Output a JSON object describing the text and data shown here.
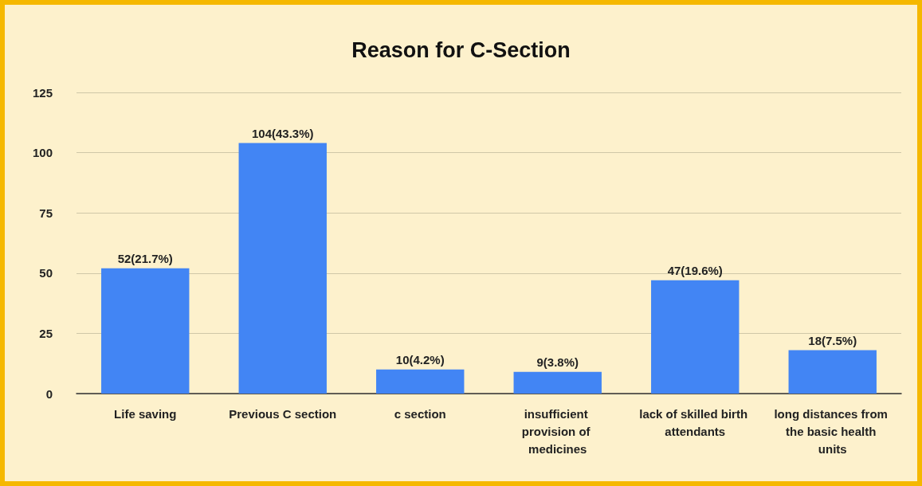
{
  "chart_data": {
    "type": "bar",
    "title": "Reason for C-Section",
    "categories": [
      "Life saving",
      "Previous C section",
      "c section",
      "insufficient provision of medicines",
      "lack of skilled birth attendants",
      "long distances from the basic health units"
    ],
    "values": [
      52,
      104,
      10,
      9,
      47,
      18
    ],
    "value_labels": [
      "52(21.7%)",
      "104(43.3%)",
      "10(4.2%)",
      "9(3.8%)",
      "47(19.6%)",
      "18(7.5%)"
    ],
    "color": "#4285f4",
    "ylim": [
      0,
      125
    ],
    "yticks": [
      0,
      25,
      50,
      75,
      100,
      125
    ],
    "grid": "y"
  }
}
